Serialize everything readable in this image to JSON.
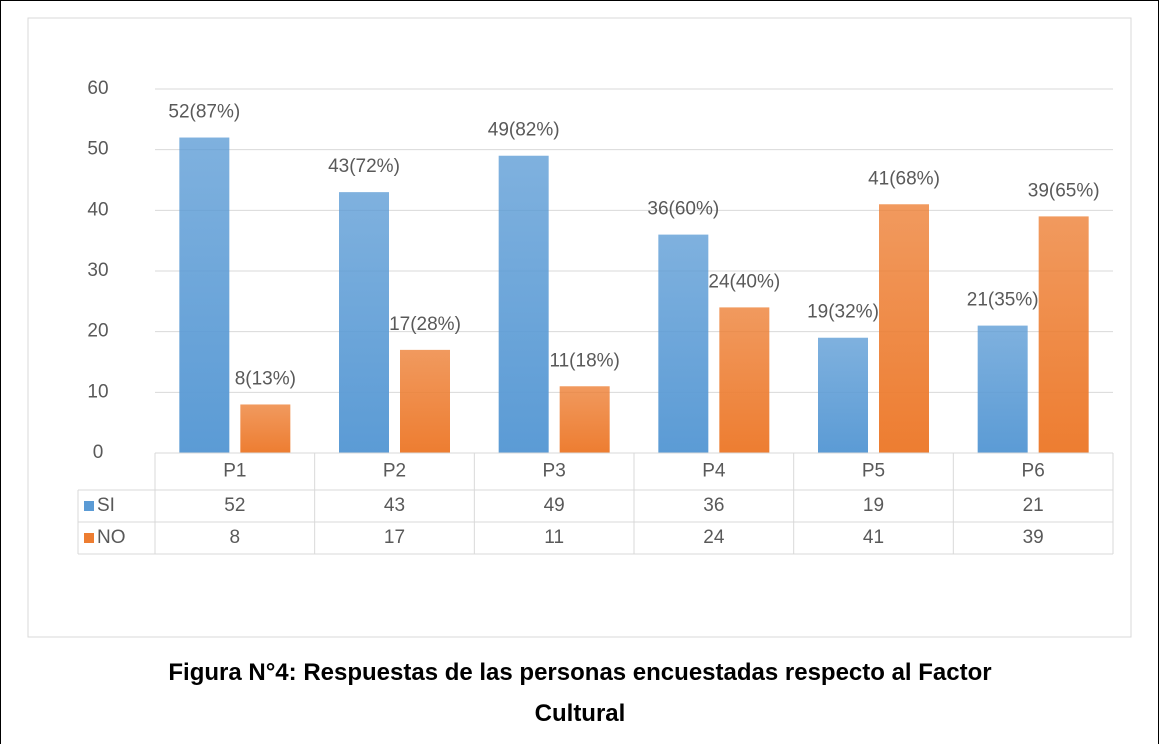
{
  "chart_data": {
    "type": "bar",
    "title": "Figura N°4: Respuestas de las personas encuestadas respecto al Factor Cultural",
    "categories": [
      "P1",
      "P2",
      "P3",
      "P4",
      "P5",
      "P6"
    ],
    "series": [
      {
        "name": "SI",
        "color": "#5b9bd5",
        "values": [
          52,
          43,
          49,
          36,
          19,
          21
        ],
        "value_labels": [
          "52(87%)",
          "43(72%)",
          "49(82%)",
          "36(60%)",
          "19(32%)",
          "21(35%)"
        ]
      },
      {
        "name": "NO",
        "color": "#ed7d31",
        "values": [
          8,
          17,
          11,
          24,
          41,
          39
        ],
        "value_labels": [
          "8(13%)",
          "17(28%)",
          "11(18%)",
          "24(40%)",
          "41(68%)",
          "39(65%)"
        ]
      }
    ],
    "ylim": [
      0,
      60
    ],
    "yticks": [
      0,
      10,
      20,
      30,
      40,
      50,
      60
    ],
    "grid": true,
    "data_table": true
  }
}
